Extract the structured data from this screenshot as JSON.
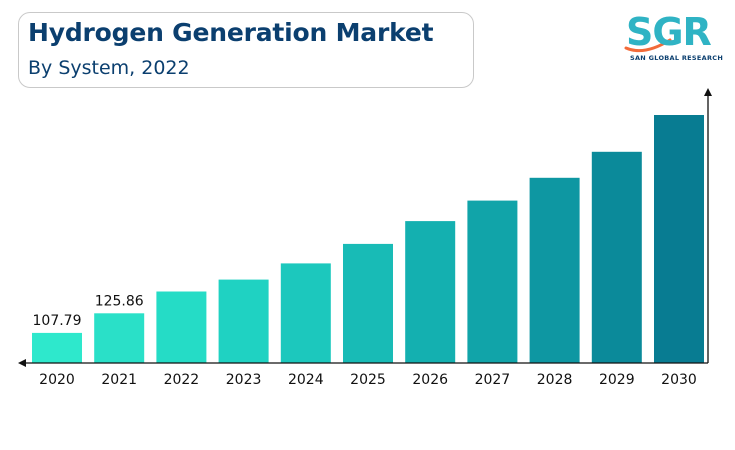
{
  "header": {
    "title": "Hydrogen Generation Market",
    "subtitle": "By System, 2022"
  },
  "logo": {
    "text": "SGR",
    "subtext": "SAN GLOBAL RESEARCH",
    "accent_color": "#2fb3c4",
    "swoosh_color": "#f26b3a"
  },
  "chart_data": {
    "type": "bar",
    "categories": [
      "2020",
      "2021",
      "2022",
      "2023",
      "2024",
      "2025",
      "2026",
      "2027",
      "2028",
      "2029",
      "2030"
    ],
    "values": [
      107.79,
      125.86,
      146,
      157,
      172,
      190,
      211,
      230,
      251,
      275,
      309
    ],
    "data_labels": [
      "107.79",
      "125.86",
      "",
      "",
      "",
      "",
      "",
      "",
      "",
      "",
      ""
    ],
    "ylim": [
      80,
      340
    ],
    "colors": [
      "#2ee8cc",
      "#2ae0c8",
      "#25dcc6",
      "#1fd2c2",
      "#1cc8bd",
      "#18bbb6",
      "#14b0b0",
      "#11a4a9",
      "#0e97a2",
      "#0b8a9a",
      "#087c92"
    ],
    "axis_arrows": true,
    "grid": false
  }
}
